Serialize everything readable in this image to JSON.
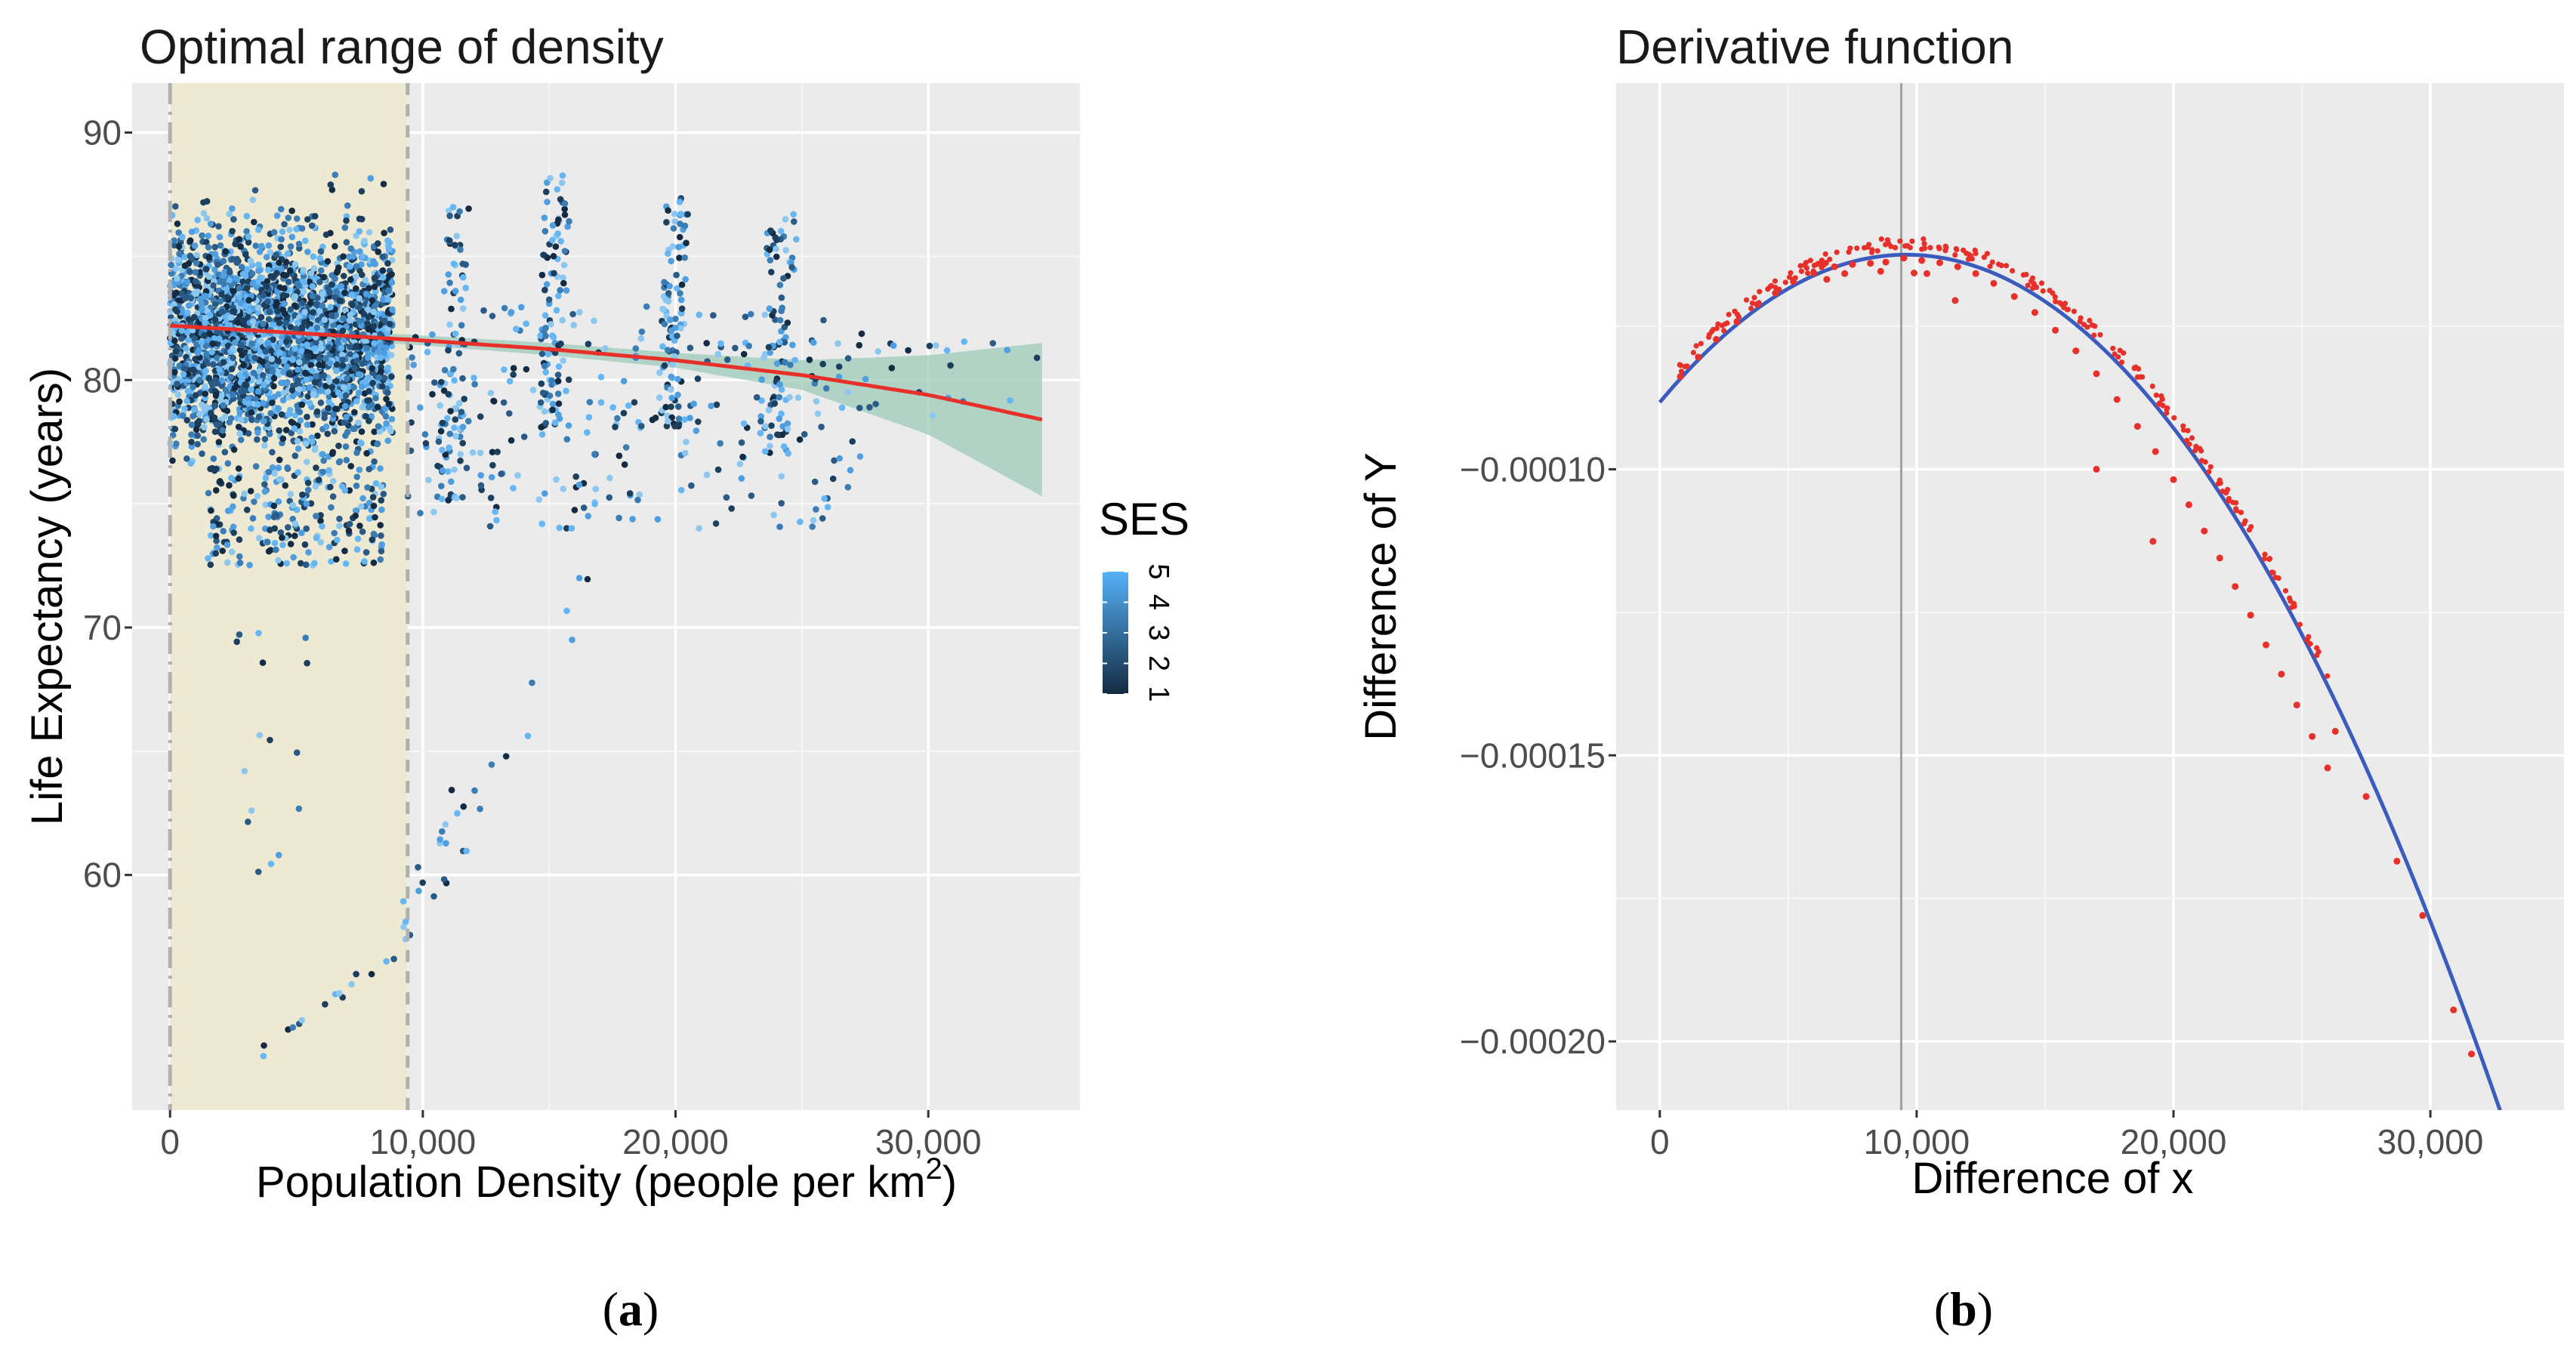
{
  "chart_data": [
    {
      "type": "scatter",
      "panel_label": "a",
      "title": "Optimal range of density",
      "xlabel_main": "Population Density (people per km",
      "xlabel_sup": "2",
      "xlabel_end": ")",
      "ylabel": "Life Expectancy (years)",
      "xlim": [
        -1500,
        36000
      ],
      "ylim": [
        50.5,
        92
      ],
      "x_ticks": [
        0,
        10000,
        20000,
        30000
      ],
      "x_tick_labels": [
        "0",
        "10,000",
        "20,000",
        "30,000"
      ],
      "y_ticks": [
        60,
        70,
        80,
        90
      ],
      "y_tick_labels": [
        "60",
        "70",
        "80",
        "90"
      ],
      "optimal_range": [
        0,
        9400
      ],
      "legend": {
        "title": "SES",
        "labels": [
          "1",
          "2",
          "3",
          "4",
          "5"
        ],
        "color_low": "#132B43",
        "color_high": "#56B1F7"
      },
      "trend_line": {
        "color": "#e8302a",
        "x": [
          0,
          5000,
          10000,
          15000,
          20000,
          25000,
          30000,
          34500
        ],
        "y": [
          82.2,
          81.9,
          81.6,
          81.25,
          80.8,
          80.2,
          79.4,
          78.4
        ]
      },
      "confidence_band": {
        "color": "#9dcbb9",
        "x": [
          0,
          5000,
          10000,
          15000,
          20000,
          25000,
          30000,
          34500
        ],
        "upper": [
          82.5,
          82.1,
          81.8,
          81.5,
          81.1,
          80.8,
          81.0,
          81.5
        ],
        "lower": [
          81.9,
          81.7,
          81.4,
          81.0,
          80.5,
          79.6,
          77.8,
          75.3
        ]
      },
      "points_note": "Several thousand neighbourhood-level points; dense cloud at 0-9,400 people/km2 (life expectancy ~73-90), sparse vertical trails at ~11,000, 15,000, 20,000, 24,000 and low outliers 52-70."
    },
    {
      "type": "line",
      "panel_label": "b",
      "title": "Derivative function",
      "xlabel": "Difference of x",
      "ylabel": "Difference of Y",
      "xlim": [
        -1700,
        35200
      ],
      "ylim": [
        -0.000212,
        -3.25e-05
      ],
      "x_ticks": [
        0,
        10000,
        20000,
        30000
      ],
      "x_tick_labels": [
        "0",
        "10,000",
        "20,000",
        "30,000"
      ],
      "y_ticks": [
        -0.0001,
        -0.00015,
        -0.0002
      ],
      "y_tick_labels": [
        "−0.00010",
        "−0.00015",
        "−0.00020"
      ],
      "vline_x": 9400,
      "curve": {
        "color": "#3b5bbf",
        "x_range": [
          0,
          33500
        ],
        "vertex_x": 9600,
        "vertex_y": -6.25e-05,
        "y_at_0": -8.83e-05
      },
      "points": {
        "color": "#e8302a",
        "x": [
          800,
          1500,
          2200,
          3000,
          3800,
          4500,
          5200,
          6000,
          6800,
          7500,
          8200,
          8800,
          9500,
          10200,
          10900,
          11600,
          12300,
          13000,
          13800,
          14600,
          15400,
          16200,
          17000,
          17800,
          18600,
          19300,
          20000,
          20600,
          21200,
          21800,
          22400,
          23000,
          23600,
          24200,
          24800,
          25400,
          26000,
          6500,
          7200,
          8600,
          9900,
          10400,
          11500,
          17000,
          19200,
          26300,
          27500,
          28700,
          29700,
          30900,
          31600
        ],
        "y": [
          -8.38e-05,
          -8.04e-05,
          -7.73e-05,
          -7.42e-05,
          -7.12e-05,
          -6.92e-05,
          -6.72e-05,
          -6.57e-05,
          -6.46e-05,
          -6.42e-05,
          -6.4e-05,
          -6.38e-05,
          -6.31e-05,
          -6.35e-05,
          -6.39e-05,
          -6.46e-05,
          -6.58e-05,
          -6.75e-05,
          -6.98e-05,
          -7.26e-05,
          -7.57e-05,
          -7.93e-05,
          -8.33e-05,
          -8.78e-05,
          -9.25e-05,
          -9.69e-05,
          -0.0001018,
          -0.0001062,
          -0.0001108,
          -0.0001155,
          -0.0001205,
          -0.0001255,
          -0.0001307,
          -0.0001358,
          -0.0001412,
          -0.0001467,
          -0.0001522,
          -6.68e-05,
          -6.58e-05,
          -6.54e-05,
          -6.57e-05,
          -6.58e-05,
          -7.05e-05,
          -0.0001,
          -0.0001126,
          -0.0001458,
          -0.0001572,
          -0.0001685,
          -0.000178,
          -0.0001945,
          -0.0002022
        ]
      }
    }
  ]
}
